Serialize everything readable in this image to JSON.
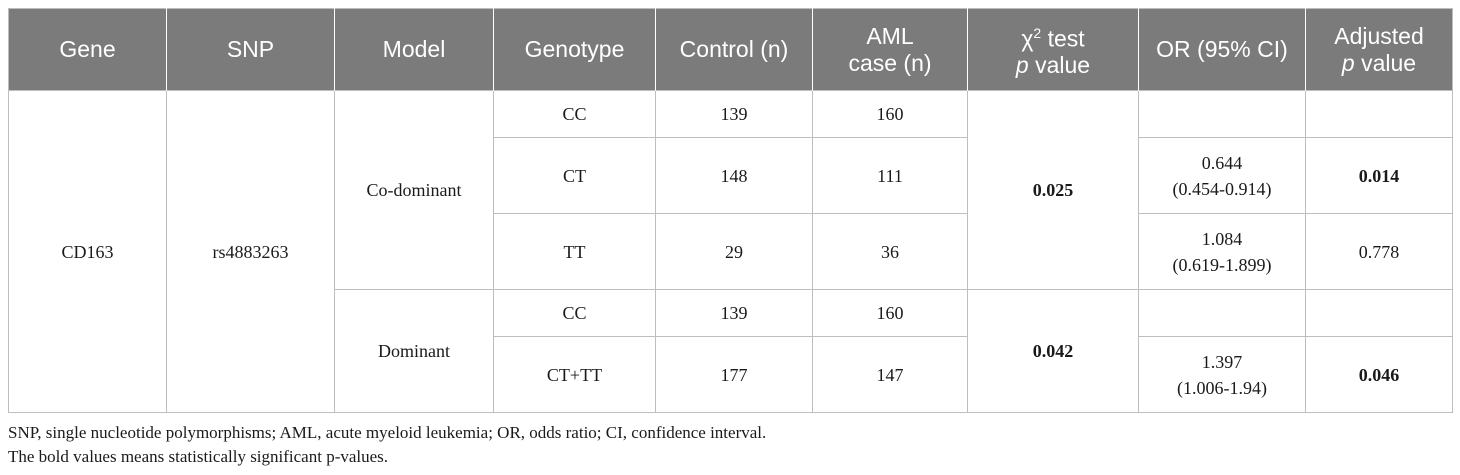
{
  "table": {
    "headers": {
      "gene": "Gene",
      "snp": "SNP",
      "model": "Model",
      "genotype": "Genotype",
      "control": "Control (n)",
      "aml_line1": "AML",
      "aml_line2": "case (n)",
      "chi_symbol": "χ",
      "chi_sup": "2",
      "chi_rest": " test",
      "pvalue_p": "p",
      "pvalue_rest": " value",
      "or": "OR (95% CI)",
      "adjusted": "Adjusted",
      "adj_p": "p",
      "adj_rest": " value"
    },
    "gene": "CD163",
    "snp": "rs4883263",
    "models": [
      {
        "name": "Co-dominant",
        "chi_p": "0.025",
        "rows": [
          {
            "genotype": "CC",
            "control": "139",
            "aml": "160",
            "or_value": "",
            "or_ci": "",
            "adjusted": ""
          },
          {
            "genotype": "CT",
            "control": "148",
            "aml": "111",
            "or_value": "0.644",
            "or_ci": "(0.454-0.914)",
            "adjusted": "0.014"
          },
          {
            "genotype": "TT",
            "control": "29",
            "aml": "36",
            "or_value": "1.084",
            "or_ci": "(0.619-1.899)",
            "adjusted": "0.778"
          }
        ]
      },
      {
        "name": "Dominant",
        "chi_p": "0.042",
        "rows": [
          {
            "genotype": "CC",
            "control": "139",
            "aml": "160",
            "or_value": "",
            "or_ci": "",
            "adjusted": ""
          },
          {
            "genotype": "CT+TT",
            "control": "177",
            "aml": "147",
            "or_value": "1.397",
            "or_ci": "(1.006-1.94)",
            "adjusted": "0.046"
          }
        ]
      }
    ]
  },
  "footnotes": [
    "SNP, single nucleotide polymorphisms; AML, acute myeloid leukemia; OR, odds ratio; CI, confidence interval.",
    "The bold values means statistically significant p-values."
  ],
  "colors": {
    "header_bg": "#7b7b7b",
    "header_text": "#ffffff",
    "border": "#bdbdbd"
  }
}
